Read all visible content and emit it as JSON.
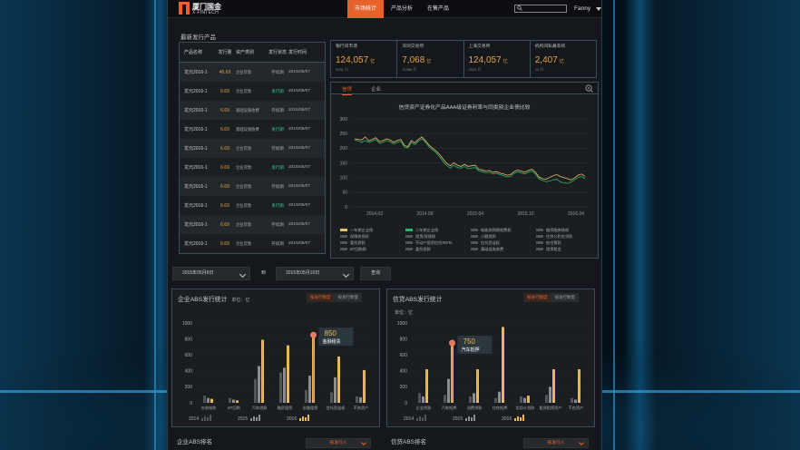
{
  "brand": {
    "name_cn": "厦门国金",
    "name_en": "X FINTECH"
  },
  "nav": [
    {
      "label": "市场统计",
      "active": true
    },
    {
      "label": "产品分析",
      "active": false
    },
    {
      "label": "在售产品",
      "active": false
    }
  ],
  "user": {
    "name": "Fanny"
  },
  "latest": {
    "title": "最新发行产品",
    "columns": [
      "产品名称",
      "发行量",
      "资产类别",
      "发行状态",
      "发行时间"
    ],
    "rows": [
      {
        "name": "龙元2016-1",
        "amount": "46.69",
        "asset": "企业贷款",
        "status": "存续期",
        "status_color": "w",
        "date": "2016/05/07"
      },
      {
        "name": "龙元2016-1",
        "amount": "6.69",
        "asset": "企业贷款",
        "status": "发行期",
        "status_color": "g",
        "date": "2016/05/07"
      },
      {
        "name": "龙元2016-1",
        "amount": "6.69",
        "asset": "基础设施收费",
        "status": "存续期",
        "status_color": "w",
        "date": "2016/05/07"
      },
      {
        "name": "龙元2016-1",
        "amount": "6.69",
        "asset": "基础设施收费",
        "status": "发行期",
        "status_color": "g",
        "date": "2016/05/07"
      },
      {
        "name": "龙元2016-1",
        "amount": "6.69",
        "asset": "企业贷款",
        "status": "存续期",
        "status_color": "w",
        "date": "2016/05/07"
      },
      {
        "name": "龙元2016-1",
        "amount": "6.69",
        "asset": "企业贷款",
        "status": "发行期",
        "status_color": "g",
        "date": "2016/05/07"
      },
      {
        "name": "龙元2016-1",
        "amount": "6.69",
        "asset": "企业贷款",
        "status": "存续期",
        "status_color": "w",
        "date": "2016/05/07"
      },
      {
        "name": "龙元2016-1",
        "amount": "6.69",
        "asset": "企业贷款",
        "status": "发行期",
        "status_color": "g",
        "date": "2016/05/07"
      },
      {
        "name": "龙元2016-1",
        "amount": "6.69",
        "asset": "企业贷款",
        "status": "存续期",
        "status_color": "w",
        "date": "2016/05/07"
      },
      {
        "name": "龙元2016-1",
        "amount": "6.69",
        "asset": "企业贷款",
        "status": "存续期",
        "status_color": "w",
        "date": "2016/05/07"
      }
    ]
  },
  "stats": [
    {
      "label": "银行间市场",
      "value": "124,057",
      "unit": "亿",
      "sub": "2031 只"
    },
    {
      "label": "深圳交易所",
      "value": "7,068",
      "unit": "亿",
      "sub": "11286 只"
    },
    {
      "label": "上海交易所",
      "value": "124,057",
      "unit": "亿",
      "sub": "2031 只"
    },
    {
      "label": "机构间私募系统",
      "value": "2,407",
      "unit": "亿",
      "sub": "14 只"
    }
  ],
  "spread_chart": {
    "tabs": [
      "信贷",
      "企业"
    ],
    "title": "信贷资产证券化产品AAA级证券利率与同类别企业债比较",
    "legend": [
      "一年期企业债",
      "二年期企业债",
      "新能源预期收费权",
      "融资融券债权",
      "保障房债权",
      "租赁/保理债",
      "小额贷款",
      "住房公积金贷款",
      "委托贷款",
      "不动产投资信托REITs",
      "信托受益权",
      "航空票款",
      "BT回购款",
      "委托贷款",
      "基础设施收费",
      "租赁租金"
    ],
    "legend_colors": [
      "#e8c060",
      "#2db36e",
      "#555555",
      "#555555",
      "#555555",
      "#555555",
      "#555555",
      "#555555",
      "#555555",
      "#555555",
      "#555555",
      "#555555",
      "#555555",
      "#555555",
      "#555555",
      "#555555"
    ]
  },
  "chart_data": [
    {
      "type": "line",
      "title": "信贷资产证券化产品AAA级证券利率与同类别企业债比较",
      "x_ticks": [
        "2014.03",
        "2014.09",
        "2015.04",
        "2015.10",
        "2016.04"
      ],
      "ylim": [
        0,
        300
      ],
      "y_ticks": [
        0,
        50,
        100,
        150,
        200,
        250,
        300
      ],
      "series": [
        {
          "name": "一年期企业债",
          "color": "#e8c060",
          "values": [
            232,
            230,
            228,
            238,
            225,
            230,
            236,
            222,
            226,
            232,
            228,
            220,
            226,
            230,
            210,
            205,
            226,
            218,
            230,
            238,
            225,
            210,
            200,
            190,
            178,
            162,
            148,
            140,
            150,
            142,
            138,
            145,
            138,
            140,
            142,
            128,
            126,
            122,
            124,
            118,
            120,
            115,
            112,
            108,
            110,
            120,
            126,
            122,
            118,
            124,
            128,
            118,
            102,
            96,
            94,
            100,
            106,
            110,
            104,
            100,
            96,
            92,
            98,
            108,
            112,
            104
          ]
        },
        {
          "name": "二年期企业债",
          "color": "#2db36e",
          "values": [
            228,
            225,
            220,
            226,
            220,
            224,
            230,
            216,
            220,
            226,
            222,
            214,
            220,
            224,
            204,
            200,
            220,
            212,
            224,
            232,
            220,
            204,
            194,
            184,
            170,
            154,
            140,
            132,
            142,
            134,
            132,
            138,
            130,
            132,
            134,
            122,
            120,
            116,
            118,
            112,
            114,
            110,
            106,
            102,
            104,
            114,
            120,
            116,
            112,
            118,
            122,
            112,
            96,
            90,
            86,
            88,
            92,
            94,
            86,
            82,
            80,
            84,
            92,
            100,
            104,
            96
          ]
        }
      ]
    },
    {
      "type": "bar",
      "title": "企业ABS发行统计",
      "ylabel": "单位：亿",
      "ylim": [
        0,
        1000
      ],
      "y_ticks": [
        0,
        200,
        400,
        600,
        800,
        1000
      ],
      "categories": [
        "应收账款",
        "BT回购",
        "汽车贷款",
        "融资租赁",
        "金融租赁",
        "信托受益权",
        "不良资产"
      ],
      "series": [
        {
          "name": "2014",
          "color": "#555555",
          "values": [
            90,
            60,
            300,
            380,
            160,
            130,
            80
          ]
        },
        {
          "name": "2015",
          "color": "#8a8f94",
          "values": [
            60,
            40,
            460,
            440,
            340,
            320,
            70
          ]
        },
        {
          "name": "2016",
          "color": "#e8b660",
          "values": [
            50,
            30,
            790,
            720,
            850,
            580,
            410
          ]
        }
      ],
      "tooltip": {
        "value": "850",
        "label": "金融租赁"
      },
      "toggle": [
        "按发行额度",
        "按发行数量"
      ],
      "years": [
        "2014",
        "2015",
        "2016"
      ]
    },
    {
      "type": "bar",
      "title": "信贷ABS发行统计",
      "ylabel": "单位：亿",
      "ylim": [
        0,
        1000
      ],
      "y_ticks": [
        0,
        200,
        400,
        600,
        800,
        1000
      ],
      "categories": [
        "企业贷款",
        "汽车抵押",
        "消费贷款",
        "住房抵押",
        "信用卡贷款",
        "租赁租赁资产",
        "不良资产"
      ],
      "series": [
        {
          "name": "2014",
          "color": "#555555",
          "values": [
            120,
            100,
            80,
            60,
            80,
            100,
            60
          ]
        },
        {
          "name": "2015",
          "color": "#8a8f94",
          "values": [
            80,
            300,
            120,
            140,
            60,
            200,
            40
          ]
        },
        {
          "name": "2016",
          "color": "#e8b660",
          "values": [
            420,
            750,
            420,
            950,
            90,
            420,
            420
          ]
        }
      ],
      "tooltip": {
        "value": "750",
        "label": "汽车抵押"
      },
      "toggle": [
        "按发行额度",
        "按发行数量"
      ],
      "years": [
        "2014",
        "2015",
        "2016"
      ]
    }
  ],
  "filter": {
    "start": "2015年05月8日",
    "to": "到",
    "end": "2015年05月10日",
    "query": "查询"
  },
  "cards": {
    "corp": {
      "title": "企业ABS发行统计",
      "unit": "单位：亿"
    },
    "credit": {
      "title": "信贷ABS发行统计",
      "unit": "单位：亿"
    }
  },
  "rank": {
    "corp": {
      "title": "企业ABS排名",
      "select": "按发行人"
    },
    "credit": {
      "title": "信贷ABS排名",
      "select": "按发行人"
    }
  }
}
